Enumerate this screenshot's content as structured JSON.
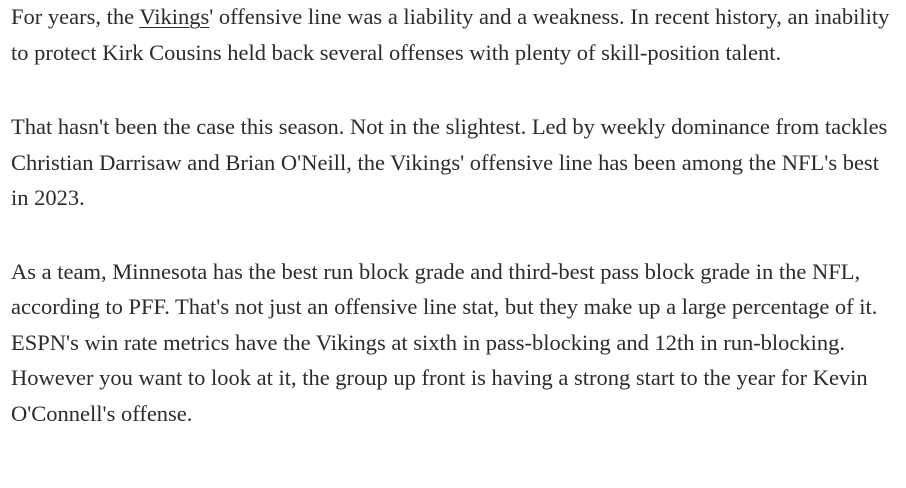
{
  "article": {
    "p1": {
      "before": "For years, the ",
      "link": "Vikings",
      "after": "' offensive line was a liability and a weakness. In recent history, an inability to protect Kirk Cousins held back several offenses with plenty of skill-position talent."
    },
    "p2": "That hasn't been the case this season. Not in the slightest. Led by weekly dominance from tackles Christian Darrisaw and Brian O'Neill, the Vikings' offensive line has been among the NFL's best in 2023.",
    "p3": "As a team, Minnesota has the best run block grade and third-best pass block grade in the NFL, according to PFF. That's not just an offensive line stat, but they make up a large percentage of it. ESPN's win rate metrics have the Vikings at sixth in pass-blocking and 12th in run-blocking. However you want to look at it, the group up front is having a strong start to the year for Kevin O'Connell's offense."
  }
}
